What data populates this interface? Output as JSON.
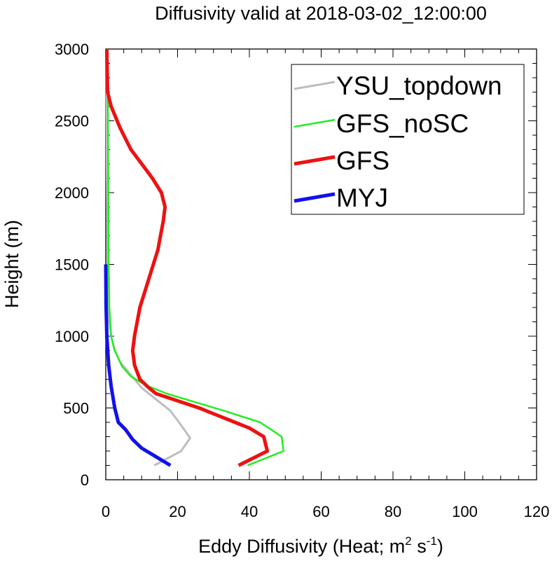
{
  "chart_data": {
    "type": "line",
    "title": "Diffusivity valid at 2018-03-02_12:00:00",
    "xlabel_main": "Eddy Diffusivity (Heat; m",
    "xlabel_sup1": "2",
    "xlabel_mid": " s",
    "xlabel_sup2": "-1",
    "xlabel_end": ")",
    "ylabel": "Height (m)",
    "xlim": [
      0,
      120
    ],
    "ylim": [
      0,
      3000
    ],
    "x_ticks": [
      "0",
      "20",
      "40",
      "60",
      "80",
      "100",
      "120"
    ],
    "y_ticks": [
      "0",
      "500",
      "1000",
      "1500",
      "2000",
      "2500",
      "3000"
    ],
    "grid": false,
    "legend_position": "top-right",
    "series": [
      {
        "name": "YSU_topdown",
        "color": "#bdbdbd",
        "points": [
          [
            13.5,
            100
          ],
          [
            21,
            200
          ],
          [
            23.5,
            290
          ],
          [
            21,
            380
          ],
          [
            18,
            480
          ],
          [
            13,
            580
          ],
          [
            10,
            640
          ],
          [
            8,
            700
          ],
          [
            6,
            760
          ],
          [
            4,
            820
          ],
          [
            2.5,
            900
          ],
          [
            1.5,
            1000
          ],
          [
            1,
            1100
          ],
          [
            0.7,
            1200
          ],
          [
            0.5,
            1400
          ],
          [
            0.4,
            1800
          ],
          [
            0.3,
            2200
          ],
          [
            0.2,
            3000
          ]
        ]
      },
      {
        "name": "GFS_noSC",
        "color": "#22ee22",
        "points": [
          [
            39.5,
            100
          ],
          [
            49.5,
            200
          ],
          [
            49,
            300
          ],
          [
            43,
            400
          ],
          [
            33,
            480
          ],
          [
            25,
            540
          ],
          [
            17,
            600
          ],
          [
            11,
            660
          ],
          [
            7,
            720
          ],
          [
            4.5,
            790
          ],
          [
            2.5,
            900
          ],
          [
            1.5,
            1000
          ],
          [
            1,
            1200
          ],
          [
            0.8,
            1500
          ],
          [
            0.7,
            2000
          ],
          [
            0.6,
            2500
          ],
          [
            0.5,
            3000
          ]
        ]
      },
      {
        "name": "GFS",
        "color": "#ee1111",
        "points": [
          [
            37,
            100
          ],
          [
            45,
            200
          ],
          [
            44,
            300
          ],
          [
            40,
            360
          ],
          [
            36,
            400
          ],
          [
            31,
            450
          ],
          [
            26,
            500
          ],
          [
            20,
            550
          ],
          [
            14,
            600
          ],
          [
            12,
            640
          ],
          [
            9.5,
            700
          ],
          [
            8,
            800
          ],
          [
            7.5,
            900
          ],
          [
            8,
            1000
          ],
          [
            9.5,
            1200
          ],
          [
            12,
            1400
          ],
          [
            14.5,
            1600
          ],
          [
            16,
            1800
          ],
          [
            16.5,
            1900
          ],
          [
            15.5,
            2000
          ],
          [
            13,
            2100
          ],
          [
            10,
            2200
          ],
          [
            7,
            2300
          ],
          [
            4,
            2450
          ],
          [
            1.5,
            2600
          ],
          [
            0.5,
            2700
          ],
          [
            0.3,
            3000
          ]
        ]
      },
      {
        "name": "MYJ",
        "color": "#1111ee",
        "points": [
          [
            18,
            100
          ],
          [
            14,
            160
          ],
          [
            10,
            220
          ],
          [
            7.5,
            280
          ],
          [
            5.5,
            350
          ],
          [
            3.5,
            400
          ],
          [
            2.5,
            500
          ],
          [
            1.5,
            650
          ],
          [
            0.8,
            800
          ],
          [
            0.3,
            1000
          ],
          [
            0.1,
            1200
          ],
          [
            0,
            1500
          ]
        ]
      }
    ]
  }
}
